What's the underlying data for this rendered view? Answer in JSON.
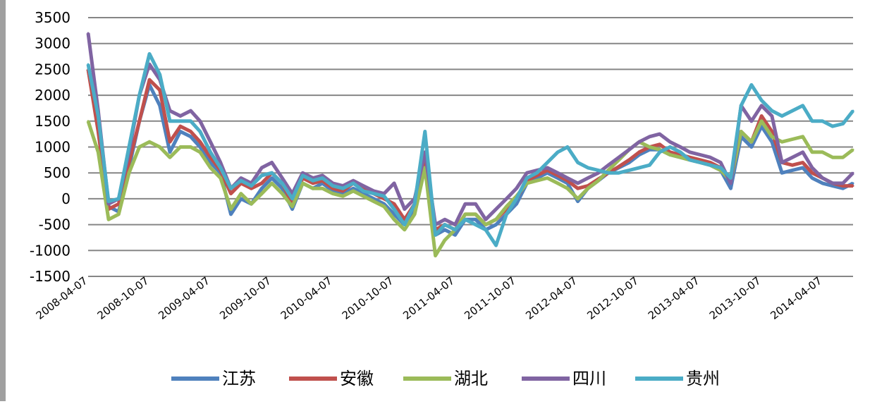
{
  "chart_data": {
    "type": "line",
    "title": "",
    "xlabel": "",
    "ylabel": "",
    "ylim": [
      -1500,
      3500
    ],
    "yticks": [
      3500,
      3000,
      2500,
      2000,
      1500,
      1000,
      500,
      0,
      -500,
      -1000,
      -1500
    ],
    "xticks": [
      "2008-04-07",
      "2008-10-07",
      "2009-04-07",
      "2009-10-07",
      "2010-04-07",
      "2010-10-07",
      "2011-04-07",
      "2011-10-07",
      "2012-04-07",
      "2012-10-07",
      "2013-04-07",
      "2013-10-07",
      "2014-04-07"
    ],
    "x": [
      "2008-04-07",
      "2008-05-07",
      "2008-06-07",
      "2008-07-07",
      "2008-08-07",
      "2008-09-07",
      "2008-10-07",
      "2008-11-07",
      "2008-12-07",
      "2009-01-07",
      "2009-02-07",
      "2009-03-07",
      "2009-04-07",
      "2009-05-07",
      "2009-06-07",
      "2009-07-07",
      "2009-08-07",
      "2009-09-07",
      "2009-10-07",
      "2009-11-07",
      "2009-12-07",
      "2010-01-07",
      "2010-02-07",
      "2010-03-07",
      "2010-04-07",
      "2010-05-07",
      "2010-06-07",
      "2010-07-07",
      "2010-08-07",
      "2010-09-07",
      "2010-10-07",
      "2010-11-07",
      "2010-12-07",
      "2011-01-07",
      "2011-02-07",
      "2011-03-07",
      "2011-04-07",
      "2011-05-07",
      "2011-06-07",
      "2011-07-07",
      "2011-08-07",
      "2011-09-07",
      "2011-10-07",
      "2011-11-07",
      "2011-12-07",
      "2012-01-07",
      "2012-02-07",
      "2012-03-07",
      "2012-04-07",
      "2012-05-07",
      "2012-06-07",
      "2012-07-07",
      "2012-08-07",
      "2012-09-07",
      "2012-10-07",
      "2012-11-07",
      "2012-12-07",
      "2013-01-07",
      "2013-02-07",
      "2013-03-07",
      "2013-04-07",
      "2013-05-07",
      "2013-06-07",
      "2013-07-07",
      "2013-08-07",
      "2013-09-07",
      "2013-10-07",
      "2013-11-07",
      "2013-12-07",
      "2014-01-07",
      "2014-02-07",
      "2014-03-07",
      "2014-04-07",
      "2014-05-07",
      "2014-06-07",
      "2014-07-07"
    ],
    "series": [
      {
        "name": "江苏",
        "color": "#4f81bd",
        "values": [
          2500,
          1400,
          -150,
          -250,
          600,
          1500,
          2200,
          1800,
          900,
          1300,
          1200,
          1000,
          700,
          500,
          -300,
          0,
          -100,
          200,
          400,
          200,
          -200,
          300,
          200,
          300,
          150,
          100,
          200,
          100,
          0,
          -100,
          -300,
          -500,
          -200,
          700,
          -700,
          -600,
          -700,
          -400,
          -400,
          -600,
          -500,
          -300,
          -100,
          300,
          400,
          500,
          400,
          300,
          -50,
          200,
          350,
          500,
          600,
          700,
          850,
          950,
          950,
          850,
          800,
          750,
          700,
          650,
          550,
          200,
          1200,
          1000,
          1400,
          1100,
          500,
          550,
          600,
          400,
          300,
          250,
          200,
          300
        ]
      },
      {
        "name": "安徽",
        "color": "#c0504d",
        "values": [
          2500,
          1300,
          -200,
          -100,
          700,
          1500,
          2300,
          2100,
          1100,
          1400,
          1300,
          1100,
          800,
          550,
          100,
          300,
          200,
          300,
          500,
          300,
          -100,
          400,
          300,
          350,
          200,
          150,
          300,
          200,
          100,
          0,
          -100,
          -400,
          -100,
          800,
          -600,
          -500,
          -600,
          -300,
          -300,
          -500,
          -400,
          -200,
          0,
          350,
          450,
          550,
          450,
          350,
          200,
          250,
          380,
          500,
          620,
          750,
          900,
          1000,
          1050,
          900,
          850,
          800,
          750,
          700,
          600,
          350,
          1300,
          1100,
          1600,
          1300,
          700,
          650,
          700,
          500,
          400,
          300,
          250,
          250
        ]
      },
      {
        "name": "湖北",
        "color": "#9bbb59",
        "values": [
          1500,
          900,
          -400,
          -300,
          500,
          1000,
          1100,
          1000,
          800,
          1000,
          1000,
          900,
          600,
          400,
          -200,
          100,
          -100,
          100,
          300,
          100,
          -150,
          300,
          200,
          200,
          100,
          50,
          150,
          50,
          -50,
          -150,
          -400,
          -600,
          -300,
          600,
          -1100,
          -800,
          -600,
          -300,
          -300,
          -500,
          -400,
          -150,
          50,
          300,
          350,
          400,
          300,
          200,
          0,
          200,
          350,
          550,
          750,
          950,
          1100,
          1000,
          950,
          850,
          800,
          750,
          700,
          650,
          550,
          350,
          1300,
          1100,
          1500,
          1200,
          1100,
          1150,
          1200,
          900,
          900,
          800,
          800,
          950
        ]
      },
      {
        "name": "四川",
        "color": "#8064a2",
        "values": [
          3200,
          1700,
          -100,
          0,
          900,
          2000,
          2600,
          2300,
          1700,
          1600,
          1700,
          1500,
          1100,
          700,
          200,
          400,
          300,
          600,
          700,
          400,
          100,
          500,
          400,
          450,
          300,
          250,
          350,
          250,
          150,
          100,
          300,
          -200,
          0,
          900,
          -500,
          -400,
          -500,
          -100,
          -100,
          -400,
          -200,
          0,
          200,
          500,
          550,
          600,
          500,
          400,
          300,
          400,
          500,
          650,
          800,
          950,
          1100,
          1200,
          1250,
          1100,
          1000,
          900,
          850,
          800,
          700,
          300,
          1800,
          1500,
          1800,
          1600,
          700,
          800,
          900,
          600,
          400,
          300,
          300,
          500
        ]
      },
      {
        "name": "贵州",
        "color": "#4bacc6",
        "values": [
          2600,
          1600,
          -50,
          0,
          1000,
          2000,
          2800,
          2400,
          1500,
          1500,
          1500,
          1300,
          900,
          600,
          200,
          350,
          250,
          450,
          500,
          300,
          0,
          450,
          350,
          400,
          250,
          200,
          300,
          150,
          100,
          50,
          -200,
          -500,
          -100,
          1300,
          -700,
          -500,
          -600,
          -400,
          -500,
          -600,
          -900,
          -300,
          0,
          400,
          500,
          700,
          900,
          1000,
          700,
          600,
          550,
          500,
          500,
          550,
          600,
          650,
          900,
          1000,
          900,
          750,
          700,
          650,
          600,
          400,
          1800,
          2200,
          1900,
          1700,
          1600,
          1700,
          1800,
          1500,
          1500,
          1400,
          1450,
          1700
        ]
      }
    ],
    "legend": {
      "position": "bottom"
    },
    "grid": true
  }
}
